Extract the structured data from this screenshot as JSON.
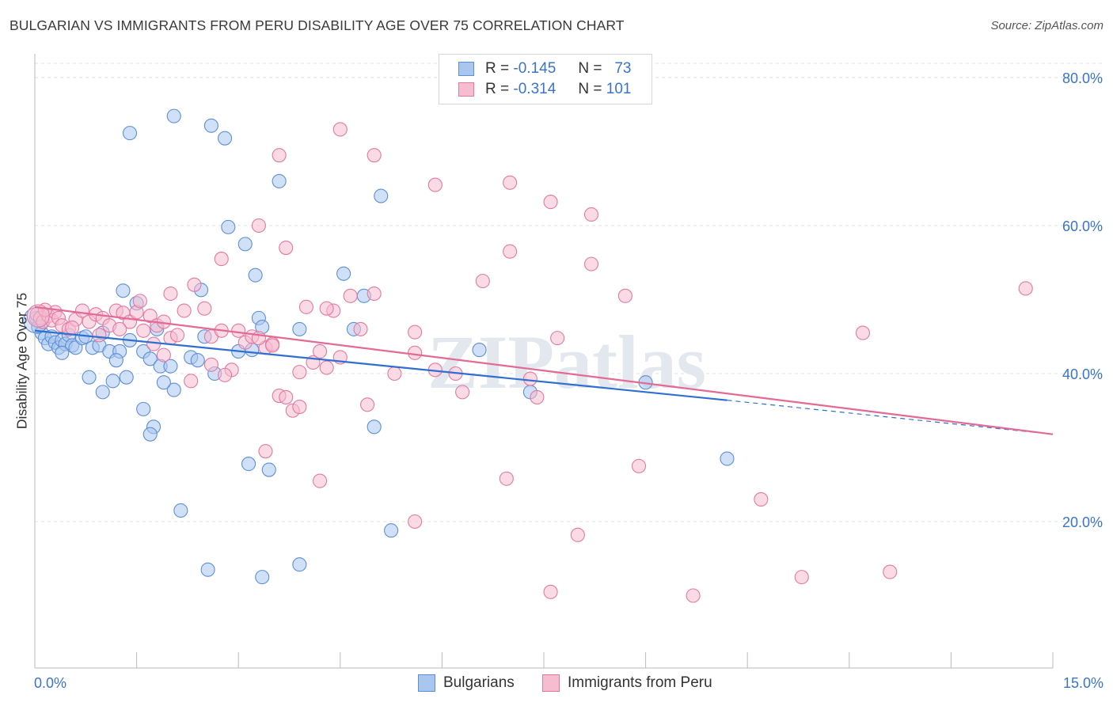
{
  "title": "BULGARIAN VS IMMIGRANTS FROM PERU DISABILITY AGE OVER 75 CORRELATION CHART",
  "source": "Source: ZipAtlas.com",
  "watermark": "ZIPatlas",
  "legend": {
    "rows": [
      {
        "r_label": "R =",
        "r_value": "-0.145",
        "n_label": "N =",
        "n_value": "73",
        "color": "#a9c6ee",
        "border": "#5d8fd6"
      },
      {
        "r_label": "R =",
        "r_value": "-0.314",
        "n_label": "N =",
        "n_value": "101",
        "color": "#f6bcd0",
        "border": "#e27aa0"
      }
    ]
  },
  "bottom_legend": [
    {
      "label": "Bulgarians",
      "color": "#a9c6ee",
      "border": "#5d8fd6"
    },
    {
      "label": "Immigrants from Peru",
      "color": "#f6bcd0",
      "border": "#e27aa0"
    }
  ],
  "chart_data": {
    "type": "scatter",
    "xlabel": "",
    "ylabel": "Disability Age Over 75",
    "xlim": [
      0,
      15
    ],
    "ylim": [
      0,
      80
    ],
    "x_tick_labels": [
      "0.0%",
      "15.0%"
    ],
    "y_ticks": [
      20,
      40,
      60,
      80
    ],
    "y_tick_labels": [
      "20.0%",
      "40.0%",
      "60.0%",
      "80.0%"
    ],
    "grid": true,
    "series": [
      {
        "name": "Bulgarians",
        "color": "#5d8fd6",
        "fill": "#a9c6ee",
        "trend": {
          "x0": 0,
          "y0": 45.8,
          "x1": 10.2,
          "y1": 36.4,
          "dash_to_x": 15,
          "dash_to_y": 31.8
        },
        "points": [
          [
            0.02,
            47.5
          ],
          [
            0.05,
            46.3
          ],
          [
            0.1,
            45.5
          ],
          [
            0.15,
            44.8
          ],
          [
            0.2,
            44.0
          ],
          [
            0.25,
            45.0
          ],
          [
            0.3,
            44.2
          ],
          [
            0.35,
            43.5
          ],
          [
            0.4,
            44.5
          ],
          [
            0.45,
            44.0
          ],
          [
            0.5,
            45.2
          ],
          [
            0.55,
            43.8
          ],
          [
            0.6,
            43.5
          ],
          [
            0.7,
            44.8
          ],
          [
            0.75,
            45.0
          ],
          [
            0.85,
            43.5
          ],
          [
            0.95,
            43.8
          ],
          [
            1.0,
            45.5
          ],
          [
            1.1,
            43.0
          ],
          [
            1.25,
            43.0
          ],
          [
            1.4,
            44.5
          ],
          [
            1.6,
            43.0
          ],
          [
            1.7,
            42.0
          ],
          [
            1.85,
            41.0
          ],
          [
            2.0,
            41.0
          ],
          [
            2.3,
            42.2
          ],
          [
            2.4,
            41.8
          ],
          [
            2.5,
            45.0
          ],
          [
            1.3,
            51.2
          ],
          [
            1.35,
            39.5
          ],
          [
            1.15,
            39.0
          ],
          [
            1.0,
            37.5
          ],
          [
            1.6,
            35.2
          ],
          [
            1.75,
            32.8
          ],
          [
            1.7,
            31.8
          ],
          [
            2.05,
            37.8
          ],
          [
            1.9,
            38.8
          ],
          [
            1.8,
            46.0
          ],
          [
            1.5,
            49.5
          ],
          [
            2.45,
            51.3
          ],
          [
            3.2,
            43.2
          ],
          [
            3.3,
            47.5
          ],
          [
            3.35,
            46.3
          ],
          [
            3.25,
            53.3
          ],
          [
            3.1,
            57.5
          ],
          [
            2.85,
            59.8
          ],
          [
            3.9,
            46.0
          ],
          [
            4.55,
            53.5
          ],
          [
            4.7,
            46.0
          ],
          [
            5.1,
            64.0
          ],
          [
            3.6,
            66.0
          ],
          [
            2.8,
            71.8
          ],
          [
            2.6,
            73.5
          ],
          [
            2.05,
            74.8
          ],
          [
            1.4,
            72.5
          ],
          [
            5.0,
            32.8
          ],
          [
            3.15,
            27.8
          ],
          [
            3.45,
            27.0
          ],
          [
            2.15,
            21.5
          ],
          [
            2.55,
            13.5
          ],
          [
            3.35,
            12.5
          ],
          [
            3.9,
            14.2
          ],
          [
            5.25,
            18.8
          ],
          [
            6.55,
            43.2
          ],
          [
            7.3,
            37.5
          ],
          [
            9.0,
            38.8
          ],
          [
            10.2,
            28.5
          ],
          [
            4.85,
            50.5
          ],
          [
            3.0,
            43.0
          ],
          [
            2.65,
            40.0
          ],
          [
            0.4,
            42.8
          ],
          [
            0.8,
            39.5
          ],
          [
            1.2,
            41.8
          ]
        ]
      },
      {
        "name": "Immigrants from Peru",
        "color": "#e27aa0",
        "fill": "#f6bcd0",
        "trend": {
          "x0": 0,
          "y0": 49.0,
          "x1": 15,
          "y1": 31.8
        },
        "points": [
          [
            0.03,
            48.0
          ],
          [
            0.08,
            47.5
          ],
          [
            0.12,
            47.0
          ],
          [
            0.2,
            47.8
          ],
          [
            0.25,
            47.2
          ],
          [
            0.3,
            48.3
          ],
          [
            0.35,
            47.5
          ],
          [
            0.4,
            46.5
          ],
          [
            0.5,
            46.0
          ],
          [
            0.6,
            47.3
          ],
          [
            0.7,
            48.5
          ],
          [
            0.8,
            47.0
          ],
          [
            0.9,
            48.0
          ],
          [
            1.0,
            47.5
          ],
          [
            1.1,
            46.5
          ],
          [
            1.2,
            48.5
          ],
          [
            1.3,
            48.2
          ],
          [
            1.4,
            47.0
          ],
          [
            1.5,
            48.3
          ],
          [
            1.6,
            45.8
          ],
          [
            1.7,
            47.8
          ],
          [
            1.8,
            46.5
          ],
          [
            1.9,
            47.0
          ],
          [
            2.0,
            44.8
          ],
          [
            2.1,
            45.2
          ],
          [
            2.2,
            48.5
          ],
          [
            2.35,
            52.0
          ],
          [
            2.5,
            48.8
          ],
          [
            2.6,
            45.0
          ],
          [
            2.75,
            45.8
          ],
          [
            2.9,
            40.5
          ],
          [
            3.0,
            45.8
          ],
          [
            3.1,
            44.2
          ],
          [
            3.2,
            45.0
          ],
          [
            3.4,
            43.5
          ],
          [
            3.5,
            44.0
          ],
          [
            3.6,
            37.0
          ],
          [
            3.7,
            36.8
          ],
          [
            3.8,
            35.0
          ],
          [
            3.9,
            35.5
          ],
          [
            4.0,
            49.0
          ],
          [
            4.1,
            41.5
          ],
          [
            4.2,
            43.0
          ],
          [
            4.3,
            40.8
          ],
          [
            4.4,
            48.5
          ],
          [
            4.5,
            42.2
          ],
          [
            4.65,
            50.5
          ],
          [
            4.8,
            46.0
          ],
          [
            5.0,
            50.8
          ],
          [
            5.3,
            40.0
          ],
          [
            5.6,
            42.8
          ],
          [
            5.9,
            40.5
          ],
          [
            6.3,
            37.5
          ],
          [
            6.6,
            52.5
          ],
          [
            7.0,
            56.5
          ],
          [
            7.3,
            39.3
          ],
          [
            7.7,
            44.8
          ],
          [
            8.2,
            54.8
          ],
          [
            8.7,
            50.5
          ],
          [
            2.0,
            50.8
          ],
          [
            2.75,
            55.5
          ],
          [
            3.3,
            60.0
          ],
          [
            3.7,
            57.0
          ],
          [
            3.6,
            69.5
          ],
          [
            4.5,
            73.0
          ],
          [
            5.0,
            69.5
          ],
          [
            5.9,
            65.5
          ],
          [
            7.0,
            65.8
          ],
          [
            7.6,
            63.2
          ],
          [
            8.2,
            61.5
          ],
          [
            3.4,
            29.5
          ],
          [
            4.2,
            25.5
          ],
          [
            5.6,
            20.0
          ],
          [
            6.95,
            25.8
          ],
          [
            8.0,
            18.2
          ],
          [
            8.9,
            27.5
          ],
          [
            9.7,
            10.0
          ],
          [
            11.3,
            12.5
          ],
          [
            12.6,
            13.2
          ],
          [
            12.2,
            45.5
          ],
          [
            14.6,
            51.5
          ],
          [
            10.7,
            23.0
          ],
          [
            7.6,
            10.5
          ],
          [
            3.3,
            44.8
          ],
          [
            2.3,
            39.0
          ],
          [
            1.9,
            42.5
          ],
          [
            1.55,
            49.8
          ],
          [
            0.95,
            45.2
          ],
          [
            4.9,
            35.8
          ],
          [
            3.5,
            43.8
          ],
          [
            4.3,
            48.8
          ],
          [
            6.2,
            40.0
          ],
          [
            2.6,
            41.2
          ],
          [
            1.75,
            44.0
          ],
          [
            0.55,
            46.2
          ],
          [
            7.4,
            36.8
          ],
          [
            5.6,
            45.6
          ],
          [
            2.8,
            39.8
          ],
          [
            3.9,
            40.2
          ],
          [
            1.25,
            46.0
          ],
          [
            0.15,
            48.6
          ]
        ]
      }
    ]
  }
}
